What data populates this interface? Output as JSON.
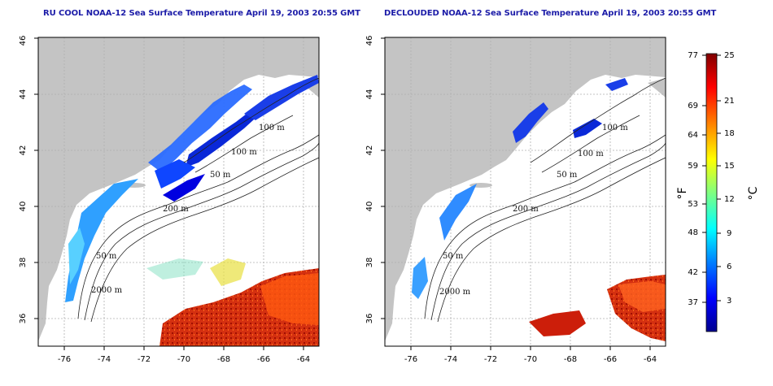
{
  "panels": [
    {
      "title": "RU COOL NOAA-12 Sea Surface Temperature April 19, 2003 20:55 GMT",
      "contour_labels": [
        "100 m",
        "100 m",
        "50 m",
        "200 m",
        "50 m",
        "2000 m"
      ]
    },
    {
      "title": "DECLOUDED NOAA-12 Sea Surface Temperature April 19, 2003 20:55 GMT",
      "contour_labels": [
        "100 m",
        "100 m",
        "50 m",
        "200 m",
        "50 m",
        "2000 m"
      ]
    }
  ],
  "axes": {
    "lon_ticks": [
      "-76",
      "-74",
      "-72",
      "-70",
      "-68",
      "-66",
      "-64"
    ],
    "lat_ticks": [
      "36",
      "38",
      "40",
      "42",
      "44",
      "46"
    ]
  },
  "colorbar": {
    "fahrenheit_ticks": [
      "77",
      "69",
      "64",
      "59",
      "53",
      "48",
      "42",
      "37"
    ],
    "celsius_ticks": [
      "25",
      "21",
      "18",
      "15",
      "12",
      "9",
      "6",
      "3"
    ],
    "fahrenheit_unit": "°F",
    "celsius_unit": "°C",
    "colors": [
      "#00008f",
      "#0000ff",
      "#0080ff",
      "#00ffff",
      "#80ff80",
      "#ffff00",
      "#ff8000",
      "#ff0000",
      "#800000"
    ]
  },
  "map_colors": {
    "land": "#c4c4c4",
    "ocean": "#ffffff",
    "frame": "#000000",
    "grid": "#b0b0b0"
  }
}
